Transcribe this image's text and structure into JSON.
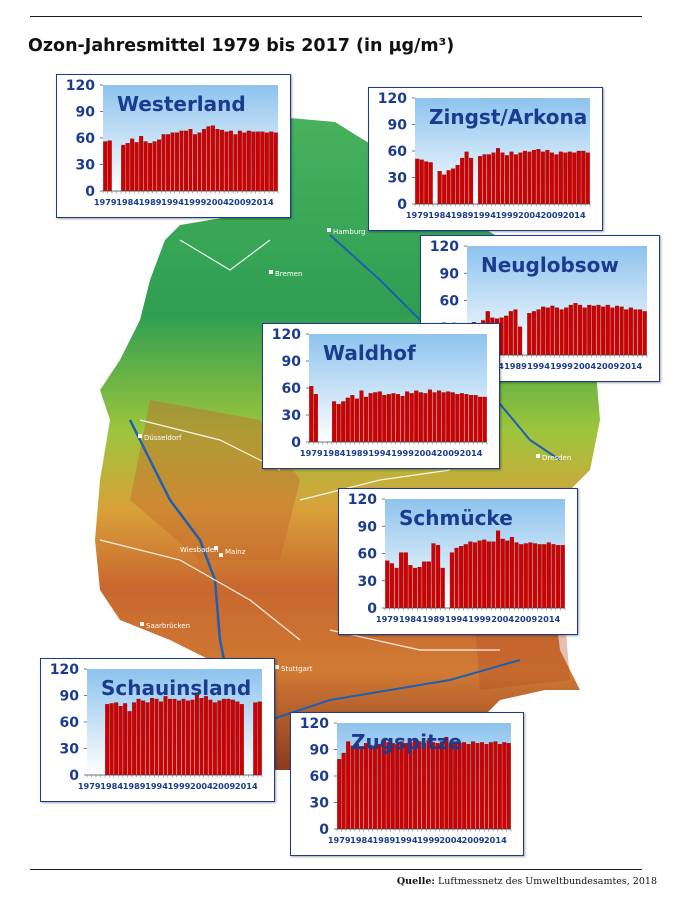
{
  "title": "Ozon-Jahresmittel 1979 bis 2017 (in µg/m³)",
  "source": {
    "label": "Quelle:",
    "text": "Luftmessnetz des Umweltbundesamtes, 2018"
  },
  "map": {
    "cities": [
      "Hamburg",
      "Bremen",
      "Düsseldorf",
      "Dresden",
      "Wiesbaden",
      "Mainz",
      "Saarbrücken",
      "Stuttgart"
    ]
  },
  "colors": {
    "bar": "#d00000",
    "bar_edge": "#6b0000",
    "axis_text": "#1b3b8f",
    "title_text": "#1b3b8f",
    "sky_top": "#8dc3ee",
    "sky_bottom": "#ffffff"
  },
  "chart_data": [
    {
      "type": "bar",
      "title": "Westerland",
      "ylim": [
        0,
        120
      ],
      "yticks": [
        0,
        30,
        60,
        90,
        120
      ],
      "xticks": [
        "1979",
        "1984",
        "1989",
        "1994",
        "1999",
        "2004",
        "2009",
        "2014"
      ],
      "x": [
        1979,
        1980,
        1981,
        1982,
        1983,
        1984,
        1985,
        1986,
        1987,
        1988,
        1989,
        1990,
        1991,
        1992,
        1993,
        1994,
        1995,
        1996,
        1997,
        1998,
        1999,
        2000,
        2001,
        2002,
        2003,
        2004,
        2005,
        2006,
        2007,
        2008,
        2009,
        2010,
        2011,
        2012,
        2013,
        2014,
        2015,
        2016,
        2017
      ],
      "values": [
        56,
        57,
        null,
        null,
        52,
        54,
        59,
        55,
        62,
        56,
        54,
        56,
        58,
        64,
        64,
        66,
        66,
        68,
        68,
        70,
        64,
        66,
        70,
        73,
        74,
        70,
        69,
        67,
        68,
        64,
        68,
        66,
        68,
        67,
        67,
        67,
        66,
        67,
        66
      ]
    },
    {
      "type": "bar",
      "title": "Zingst/Arkona",
      "ylim": [
        0,
        120
      ],
      "yticks": [
        0,
        30,
        60,
        90,
        120
      ],
      "xticks": [
        "1979",
        "1984",
        "1989",
        "1994",
        "1999",
        "2004",
        "2009",
        "2014"
      ],
      "x": [
        1979,
        1980,
        1981,
        1982,
        1983,
        1984,
        1985,
        1986,
        1987,
        1988,
        1989,
        1990,
        1991,
        1992,
        1993,
        1994,
        1995,
        1996,
        1997,
        1998,
        1999,
        2000,
        2001,
        2002,
        2003,
        2004,
        2005,
        2006,
        2007,
        2008,
        2009,
        2010,
        2011,
        2012,
        2013,
        2014,
        2015,
        2016,
        2017
      ],
      "values": [
        51,
        50,
        48,
        47,
        null,
        37,
        33,
        38,
        40,
        44,
        52,
        59,
        52,
        null,
        54,
        56,
        56,
        58,
        63,
        58,
        55,
        59,
        56,
        58,
        60,
        59,
        61,
        62,
        59,
        61,
        58,
        56,
        59,
        58,
        59,
        58,
        60,
        60,
        58
      ]
    },
    {
      "type": "bar",
      "title": "Neuglobsow",
      "ylim": [
        0,
        120
      ],
      "yticks": [
        0,
        30,
        60,
        90,
        120
      ],
      "xticks": [
        "1979",
        "1984",
        "1989",
        "1994",
        "1999",
        "2004",
        "2009",
        "2014"
      ],
      "x": [
        1979,
        1980,
        1981,
        1982,
        1983,
        1984,
        1985,
        1986,
        1987,
        1988,
        1989,
        1990,
        1991,
        1992,
        1993,
        1994,
        1995,
        1996,
        1997,
        1998,
        1999,
        2000,
        2001,
        2002,
        2003,
        2004,
        2005,
        2006,
        2007,
        2008,
        2009,
        2010,
        2011,
        2012,
        2013,
        2014,
        2015,
        2016,
        2017
      ],
      "values": [
        33,
        36,
        null,
        38,
        48,
        41,
        40,
        41,
        43,
        48,
        50,
        31,
        null,
        46,
        48,
        50,
        53,
        52,
        54,
        52,
        50,
        52,
        55,
        57,
        55,
        52,
        55,
        54,
        55,
        53,
        55,
        52,
        54,
        53,
        50,
        52,
        50,
        50,
        48
      ]
    },
    {
      "type": "bar",
      "title": "Waldhof",
      "ylim": [
        0,
        120
      ],
      "yticks": [
        0,
        30,
        60,
        90,
        120
      ],
      "xticks": [
        "1979",
        "1984",
        "1989",
        "1994",
        "1999",
        "2004",
        "2009",
        "2014"
      ],
      "x": [
        1979,
        1980,
        1981,
        1982,
        1983,
        1984,
        1985,
        1986,
        1987,
        1988,
        1989,
        1990,
        1991,
        1992,
        1993,
        1994,
        1995,
        1996,
        1997,
        1998,
        1999,
        2000,
        2001,
        2002,
        2003,
        2004,
        2005,
        2006,
        2007,
        2008,
        2009,
        2010,
        2011,
        2012,
        2013,
        2014,
        2015,
        2016,
        2017
      ],
      "values": [
        62,
        53,
        null,
        null,
        null,
        45,
        42,
        45,
        49,
        52,
        48,
        57,
        50,
        54,
        55,
        56,
        52,
        53,
        54,
        53,
        51,
        56,
        54,
        57,
        55,
        54,
        58,
        55,
        57,
        55,
        56,
        55,
        53,
        54,
        53,
        52,
        52,
        50,
        50
      ]
    },
    {
      "type": "bar",
      "title": "Schmücke",
      "ylim": [
        0,
        120
      ],
      "yticks": [
        0,
        30,
        60,
        90,
        120
      ],
      "xticks": [
        "1979",
        "1984",
        "1989",
        "1994",
        "1999",
        "2004",
        "2009",
        "2014"
      ],
      "x": [
        1979,
        1980,
        1981,
        1982,
        1983,
        1984,
        1985,
        1986,
        1987,
        1988,
        1989,
        1990,
        1991,
        1992,
        1993,
        1994,
        1995,
        1996,
        1997,
        1998,
        1999,
        2000,
        2001,
        2002,
        2003,
        2004,
        2005,
        2006,
        2007,
        2008,
        2009,
        2010,
        2011,
        2012,
        2013,
        2014,
        2015,
        2016,
        2017
      ],
      "values": [
        52,
        49,
        44,
        61,
        61,
        47,
        44,
        45,
        51,
        51,
        71,
        69,
        44,
        null,
        61,
        66,
        68,
        70,
        73,
        72,
        74,
        75,
        73,
        73,
        85,
        76,
        74,
        78,
        72,
        70,
        71,
        72,
        71,
        70,
        70,
        72,
        70,
        69,
        69
      ]
    },
    {
      "type": "bar",
      "title": "Schauinsland",
      "ylim": [
        0,
        120
      ],
      "yticks": [
        0,
        30,
        60,
        90,
        120
      ],
      "xticks": [
        "1979",
        "1984",
        "1989",
        "1994",
        "1999",
        "2004",
        "2009",
        "2014"
      ],
      "x": [
        1979,
        1980,
        1981,
        1982,
        1983,
        1984,
        1985,
        1986,
        1987,
        1988,
        1989,
        1990,
        1991,
        1992,
        1993,
        1994,
        1995,
        1996,
        1997,
        1998,
        1999,
        2000,
        2001,
        2002,
        2003,
        2004,
        2005,
        2006,
        2007,
        2008,
        2009,
        2010,
        2011,
        2012,
        2013,
        2014,
        2015,
        2016,
        2017
      ],
      "values": [
        null,
        null,
        null,
        null,
        80,
        81,
        82,
        78,
        81,
        72,
        82,
        86,
        84,
        82,
        87,
        86,
        83,
        89,
        86,
        86,
        84,
        86,
        84,
        85,
        93,
        87,
        89,
        85,
        82,
        84,
        86,
        86,
        85,
        83,
        80,
        null,
        null,
        82,
        83
      ]
    },
    {
      "type": "bar",
      "title": "Zugspitze",
      "ylim": [
        0,
        120
      ],
      "yticks": [
        0,
        30,
        60,
        90,
        120
      ],
      "xticks": [
        "1979",
        "1984",
        "1989",
        "1994",
        "1999",
        "2004",
        "2009",
        "2014"
      ],
      "x": [
        1979,
        1980,
        1981,
        1982,
        1983,
        1984,
        1985,
        1986,
        1987,
        1988,
        1989,
        1990,
        1991,
        1992,
        1993,
        1994,
        1995,
        1996,
        1997,
        1998,
        1999,
        2000,
        2001,
        2002,
        2003,
        2004,
        2005,
        2006,
        2007,
        2008,
        2009,
        2010,
        2011,
        2012,
        2013,
        2014,
        2015,
        2016,
        2017
      ],
      "values": [
        79,
        86,
        99,
        94,
        96,
        92,
        97,
        95,
        94,
        96,
        100,
        98,
        97,
        96,
        99,
        97,
        98,
        100,
        99,
        97,
        100,
        98,
        97,
        99,
        104,
        97,
        99,
        97,
        98,
        96,
        99,
        97,
        98,
        96,
        98,
        99,
        96,
        98,
        97
      ]
    }
  ]
}
